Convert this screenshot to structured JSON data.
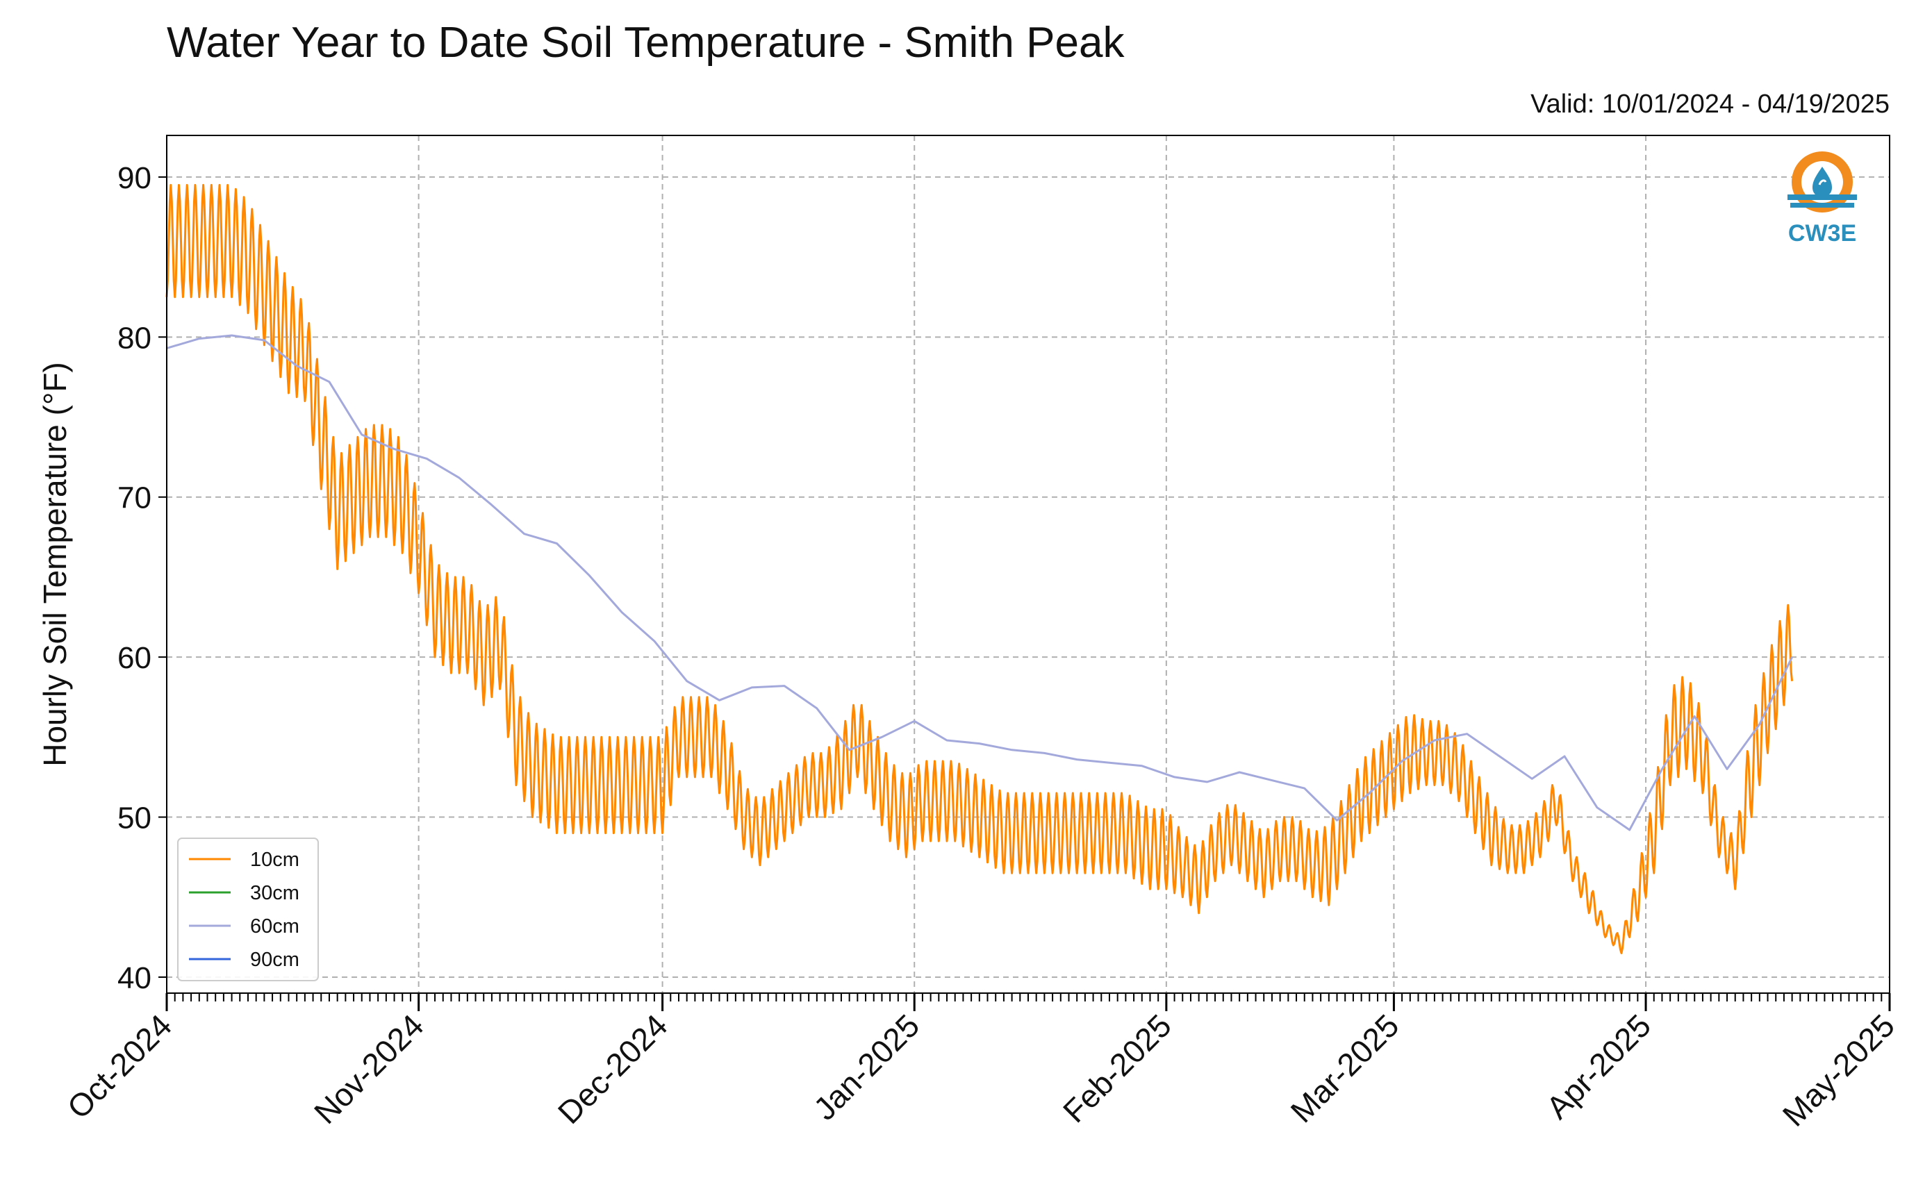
{
  "chart_data": {
    "type": "line",
    "title": "Water Year to Date Soil Temperature - Smith Peak",
    "subtitle": "Valid: 10/01/2024 - 04/19/2025",
    "ylabel": "Hourly Soil Temperature (°F)",
    "xlabel": "",
    "ylim": [
      39,
      92.6
    ],
    "xlim": [
      "2024-10-01",
      "2025-05-01"
    ],
    "yticks": [
      40,
      50,
      60,
      70,
      80,
      90
    ],
    "xtick_labels": [
      "Oct-2024",
      "Nov-2024",
      "Dec-2024",
      "Jan-2025",
      "Feb-2025",
      "Mar-2025",
      "Apr-2025",
      "May-2025"
    ],
    "xtick_dates": [
      "2024-10-01",
      "2024-11-01",
      "2024-12-01",
      "2025-01-01",
      "2025-02-01",
      "2025-03-01",
      "2025-04-01",
      "2025-05-01"
    ],
    "grid": true,
    "legend_position": "lower-left",
    "series": [
      {
        "name": "10cm",
        "color": "#ff8800",
        "daily_range": true,
        "dates": [
          "2024-10-01",
          "2024-10-03",
          "2024-10-06",
          "2024-10-09",
          "2024-10-11",
          "2024-10-13",
          "2024-10-16",
          "2024-10-18",
          "2024-10-20",
          "2024-10-22",
          "2024-10-24",
          "2024-10-26",
          "2024-10-28",
          "2024-10-30",
          "2024-11-01",
          "2024-11-03",
          "2024-11-05",
          "2024-11-07",
          "2024-11-09",
          "2024-11-11",
          "2024-11-13",
          "2024-11-15",
          "2024-11-18",
          "2024-11-20",
          "2024-11-22",
          "2024-11-25",
          "2024-11-27",
          "2024-11-29",
          "2024-12-01",
          "2024-12-03",
          "2024-12-05",
          "2024-12-07",
          "2024-12-09",
          "2024-12-11",
          "2024-12-13",
          "2024-12-15",
          "2024-12-17",
          "2024-12-19",
          "2024-12-21",
          "2024-12-23",
          "2024-12-25",
          "2024-12-27",
          "2024-12-29",
          "2024-12-31",
          "2025-01-02",
          "2025-01-04",
          "2025-01-06",
          "2025-01-09",
          "2025-01-12",
          "2025-01-15",
          "2025-01-18",
          "2025-01-21",
          "2025-01-24",
          "2025-01-27",
          "2025-01-30",
          "2025-02-01",
          "2025-02-03",
          "2025-02-05",
          "2025-02-07",
          "2025-02-09",
          "2025-02-11",
          "2025-02-13",
          "2025-02-15",
          "2025-02-17",
          "2025-02-19",
          "2025-02-21",
          "2025-02-23",
          "2025-02-25",
          "2025-02-27",
          "2025-03-01",
          "2025-03-03",
          "2025-03-05",
          "2025-03-07",
          "2025-03-09",
          "2025-03-11",
          "2025-03-13",
          "2025-03-15",
          "2025-03-17",
          "2025-03-19",
          "2025-03-21",
          "2025-03-23",
          "2025-03-25",
          "2025-03-27",
          "2025-03-29",
          "2025-03-31",
          "2025-04-02",
          "2025-04-04",
          "2025-04-06",
          "2025-04-08",
          "2025-04-10",
          "2025-04-12",
          "2025-04-14",
          "2025-04-16",
          "2025-04-18",
          "2025-04-19"
        ],
        "mid": [
          86,
          86,
          86,
          86,
          85,
          83,
          80,
          79,
          74,
          69,
          70,
          71,
          71,
          70,
          67,
          63,
          62,
          62,
          60,
          61,
          55,
          53,
          52,
          52,
          52,
          52,
          52,
          52,
          52,
          55,
          55,
          55,
          53,
          50,
          49,
          50,
          51,
          52,
          52,
          53,
          55,
          53,
          51,
          50,
          51,
          51,
          51,
          50,
          49,
          49,
          49,
          49,
          49,
          49,
          48,
          48,
          47,
          46,
          48,
          49,
          48,
          47,
          48,
          48,
          47,
          47,
          49,
          51,
          52,
          53,
          54,
          54,
          54,
          53,
          51,
          49,
          48,
          48,
          49,
          51,
          47,
          45,
          43,
          42,
          45,
          49,
          55,
          56,
          54,
          49,
          47,
          53,
          57,
          60,
          61
        ],
        "amp": [
          3.5,
          3.5,
          3.5,
          3.5,
          3.5,
          3.5,
          3.5,
          3,
          3.5,
          3.5,
          3.5,
          3.5,
          3.5,
          3.5,
          3,
          3,
          3,
          3,
          3,
          3,
          3,
          3,
          3,
          3,
          3,
          3,
          3,
          3,
          3,
          2.5,
          2.5,
          2.5,
          2.5,
          2,
          2,
          2,
          2,
          2,
          2,
          2.5,
          2.5,
          2.5,
          2.5,
          2.5,
          2.5,
          2.5,
          2.5,
          2.5,
          2.5,
          2.5,
          2.5,
          2.5,
          2.5,
          2.5,
          2.5,
          2.5,
          2,
          2,
          2,
          2,
          2,
          2,
          2,
          2,
          2,
          2.5,
          2.5,
          2.5,
          2.5,
          2.5,
          2.5,
          2,
          2,
          2,
          2,
          2,
          1.5,
          1.5,
          1.5,
          1.5,
          1,
          1,
          0.5,
          0.5,
          1.5,
          2.5,
          3,
          3,
          2.5,
          1.5,
          1.5,
          3,
          3,
          3,
          2.5
        ]
      },
      {
        "name": "30cm",
        "color": "#2ca02c"
      },
      {
        "name": "60cm",
        "color": "#a4a9dc",
        "dates": [
          "2024-10-01",
          "2024-10-05",
          "2024-10-09",
          "2024-10-13",
          "2024-10-17",
          "2024-10-21",
          "2024-10-25",
          "2024-10-29",
          "2024-11-02",
          "2024-11-06",
          "2024-11-10",
          "2024-11-14",
          "2024-11-18",
          "2024-11-22",
          "2024-11-26",
          "2024-11-30",
          "2024-12-04",
          "2024-12-08",
          "2024-12-12",
          "2024-12-16",
          "2024-12-20",
          "2024-12-24",
          "2024-12-28",
          "2025-01-01",
          "2025-01-05",
          "2025-01-09",
          "2025-01-13",
          "2025-01-17",
          "2025-01-21",
          "2025-01-25",
          "2025-01-29",
          "2025-02-02",
          "2025-02-06",
          "2025-02-10",
          "2025-02-14",
          "2025-02-18",
          "2025-02-22",
          "2025-02-26",
          "2025-03-02",
          "2025-03-06",
          "2025-03-10",
          "2025-03-14",
          "2025-03-18",
          "2025-03-22",
          "2025-03-26",
          "2025-03-30",
          "2025-04-03",
          "2025-04-07",
          "2025-04-11",
          "2025-04-15",
          "2025-04-19"
        ],
        "values": [
          79.3,
          79.9,
          80.1,
          79.8,
          78.2,
          77.2,
          73.9,
          73.0,
          72.4,
          71.2,
          69.5,
          67.7,
          67.1,
          65.1,
          62.8,
          61.0,
          58.5,
          57.3,
          58.1,
          58.2,
          56.8,
          54.2,
          55.0,
          56.0,
          54.8,
          54.6,
          54.2,
          54.0,
          53.6,
          53.4,
          53.2,
          52.5,
          52.2,
          52.8,
          52.3,
          51.8,
          49.8,
          51.5,
          53.5,
          54.8,
          55.2,
          53.8,
          52.4,
          53.8,
          50.6,
          49.2,
          53.0,
          56.3,
          53.0,
          55.8,
          60.0
        ]
      },
      {
        "name": "90cm",
        "color": "#3366dd"
      }
    ]
  },
  "logo": {
    "text": "CW3E",
    "ring_color": "#f28c1e",
    "blue": "#2a8fbd"
  }
}
